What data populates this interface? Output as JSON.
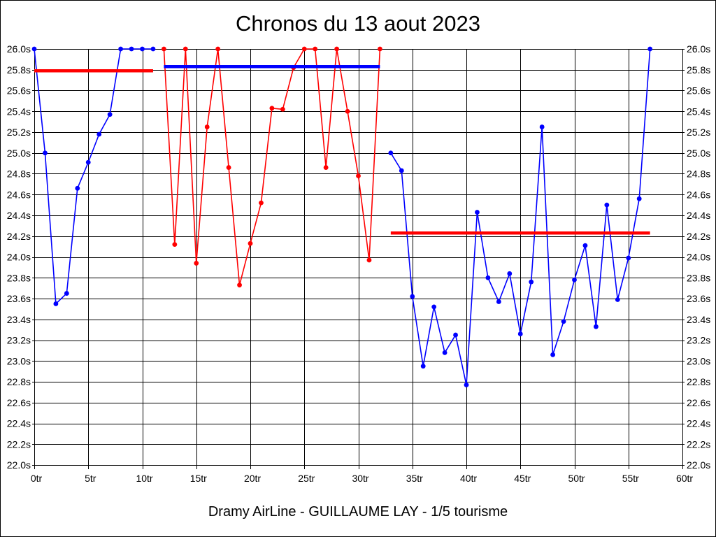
{
  "chart_data": {
    "type": "line",
    "title": "Chronos du 13 aout 2023",
    "caption": "Dramy AirLine - GUILLAUME LAY - 1/5 tourisme",
    "xlabel": "",
    "ylabel": "",
    "x_unit": "tr",
    "y_unit": "s",
    "xlim": [
      0,
      60
    ],
    "ylim": [
      22.0,
      26.0
    ],
    "x_tick_step": 5,
    "y_tick_step": 0.2,
    "grid": true,
    "legend_position": "none",
    "x_tick_labels": [
      "0tr",
      "5tr",
      "10tr",
      "15tr",
      "20tr",
      "25tr",
      "30tr",
      "35tr",
      "40tr",
      "45tr",
      "50tr",
      "55tr",
      "60tr"
    ],
    "y_tick_labels": [
      "26.0s",
      "25.8s",
      "25.6s",
      "25.4s",
      "25.2s",
      "25.0s",
      "24.8s",
      "24.6s",
      "24.4s",
      "24.2s",
      "24.0s",
      "23.8s",
      "23.6s",
      "23.4s",
      "23.2s",
      "23.0s",
      "22.8s",
      "22.6s",
      "22.4s",
      "22.2s",
      "22.0s"
    ],
    "colors": {
      "stint_blue": "#0000ff",
      "stint_red": "#ff0000",
      "grid": "#000000",
      "text": "#000000",
      "background": "#ffffff"
    },
    "series": [
      {
        "name": "stint-1-laps",
        "color": "#0000ff",
        "x": [
          0,
          1,
          2,
          3,
          4,
          5,
          6,
          7,
          8,
          9,
          10,
          11
        ],
        "y": [
          26.0,
          25.0,
          23.55,
          23.65,
          24.66,
          24.91,
          25.18,
          25.37,
          26.0,
          26.0,
          26.0,
          26.0
        ]
      },
      {
        "name": "stint-2-laps",
        "color": "#ff0000",
        "x": [
          12,
          13,
          14,
          15,
          16,
          17,
          18,
          19,
          20,
          21,
          22,
          23,
          24,
          25,
          26,
          27,
          28,
          29,
          30,
          31,
          32
        ],
        "y": [
          26.0,
          24.12,
          26.0,
          23.94,
          25.25,
          26.0,
          24.86,
          23.73,
          24.13,
          24.52,
          25.43,
          25.42,
          25.82,
          26.0,
          26.0,
          24.86,
          26.0,
          25.4,
          24.78,
          23.97,
          26.0
        ]
      },
      {
        "name": "stint-3-laps",
        "color": "#0000ff",
        "x": [
          33,
          34,
          35,
          36,
          37,
          38,
          39,
          40,
          41,
          42,
          43,
          44,
          45,
          46,
          47,
          48,
          49,
          50,
          51,
          52,
          53,
          54,
          55,
          56,
          57
        ],
        "y": [
          25.0,
          24.83,
          23.62,
          22.95,
          23.52,
          23.08,
          23.25,
          22.77,
          24.43,
          23.8,
          23.57,
          23.84,
          23.26,
          23.76,
          25.25,
          23.06,
          23.38,
          23.78,
          24.11,
          23.33,
          24.5,
          23.59,
          23.99,
          24.56,
          26.0
        ]
      }
    ],
    "reference_lines": [
      {
        "name": "avg-line-stint-1",
        "color": "#ff0000",
        "y": 25.79,
        "x_start": 0,
        "x_end": 11
      },
      {
        "name": "avg-line-stint-2",
        "color": "#0000ff",
        "y": 25.83,
        "x_start": 12,
        "x_end": 32
      },
      {
        "name": "avg-line-stint-3",
        "color": "#ff0000",
        "y": 24.23,
        "x_start": 33,
        "x_end": 57
      }
    ]
  }
}
